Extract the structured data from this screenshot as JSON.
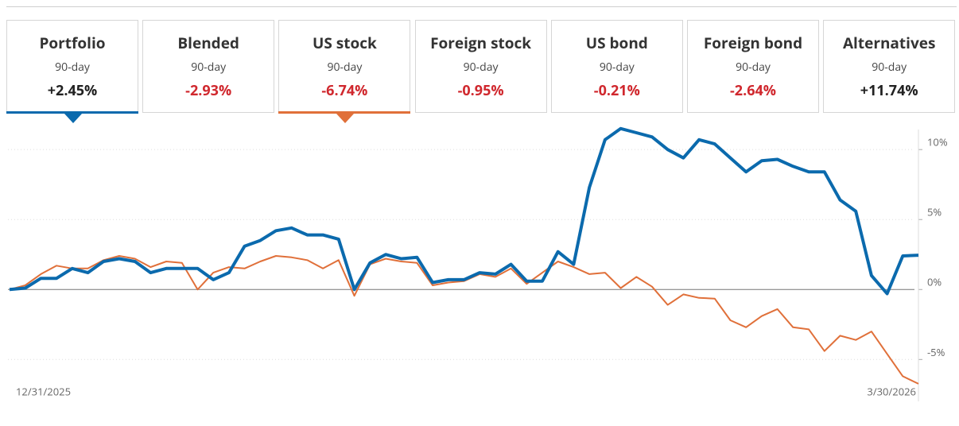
{
  "tabs": [
    {
      "name": "Portfolio",
      "period": "90-day",
      "change": "+2.45%",
      "highlight": "#0b6aad",
      "pointer": true
    },
    {
      "name": "Blended",
      "period": "90-day",
      "change": "-2.93%"
    },
    {
      "name": "US stock",
      "period": "90-day",
      "change": "-6.74%",
      "highlight": "#e0703a",
      "pointer": true
    },
    {
      "name": "Foreign stock",
      "period": "90-day",
      "change": "-0.95%"
    },
    {
      "name": "US bond",
      "period": "90-day",
      "change": "-0.21%"
    },
    {
      "name": "Foreign bond",
      "period": "90-day",
      "change": "-2.64%"
    },
    {
      "name": "Alternatives",
      "period": "90-day",
      "change": "+11.74%"
    }
  ],
  "chart_data": {
    "type": "line",
    "categories": [
      "12/31/2025",
      null,
      null,
      null,
      null,
      null,
      null,
      null,
      null,
      null,
      null,
      null,
      null,
      null,
      null,
      null,
      null,
      null,
      null,
      null,
      null,
      null,
      null,
      null,
      null,
      null,
      null,
      null,
      null,
      null,
      null,
      null,
      null,
      null,
      null,
      null,
      null,
      null,
      null,
      null,
      null,
      null,
      null,
      null,
      null,
      null,
      null,
      null,
      null,
      null,
      null,
      null,
      null,
      null,
      null,
      null,
      null,
      null,
      "3/30/2026"
    ],
    "series": [
      {
        "color": "#e0703a",
        "width": 2,
        "values": [
          0,
          0.3,
          1.1,
          1.7,
          1.5,
          1.5,
          2.1,
          2.4,
          2.2,
          1.6,
          2.0,
          1.9,
          0.0,
          1.2,
          1.6,
          1.5,
          2.0,
          2.4,
          2.3,
          2.1,
          1.5,
          2.1,
          -0.45,
          1.8,
          2.2,
          2.0,
          1.9,
          0.3,
          0.5,
          0.6,
          1.1,
          0.9,
          1.5,
          0.4,
          1.2,
          2.0,
          1.6,
          1.1,
          1.2,
          0.1,
          0.9,
          0.2,
          -1.1,
          -0.35,
          -0.6,
          -0.65,
          -2.2,
          -2.7,
          -1.9,
          -1.4,
          -2.7,
          -2.85,
          -4.4,
          -3.3,
          -3.6,
          -3.0,
          -4.6,
          -6.2,
          -6.74
        ]
      },
      {
        "color": "#0b6aad",
        "width": 4,
        "values": [
          0,
          0.1,
          0.8,
          0.8,
          1.5,
          1.2,
          2.0,
          2.2,
          2.0,
          1.2,
          1.5,
          1.5,
          1.5,
          0.7,
          1.2,
          3.1,
          3.5,
          4.2,
          4.4,
          3.9,
          3.9,
          3.6,
          0,
          1.9,
          2.5,
          2.2,
          2.3,
          0.5,
          0.7,
          0.7,
          1.2,
          1.1,
          1.8,
          0.6,
          0.6,
          2.7,
          1.8,
          7.3,
          10.7,
          11.5,
          11.2,
          10.9,
          10.0,
          9.4,
          10.7,
          10.4,
          9.4,
          8.4,
          9.2,
          9.3,
          8.8,
          8.4,
          8.4,
          6.4,
          5.6,
          1.0,
          -0.3,
          2.4,
          2.45
        ]
      }
    ],
    "ylim": [
      -6.8,
      11.6
    ],
    "yticks": [
      {
        "value": 10,
        "label": "10%"
      },
      {
        "value": 5,
        "label": "5%"
      },
      {
        "value": 0,
        "label": "0%"
      },
      {
        "value": -5,
        "label": "-5%"
      }
    ],
    "grid": true
  }
}
